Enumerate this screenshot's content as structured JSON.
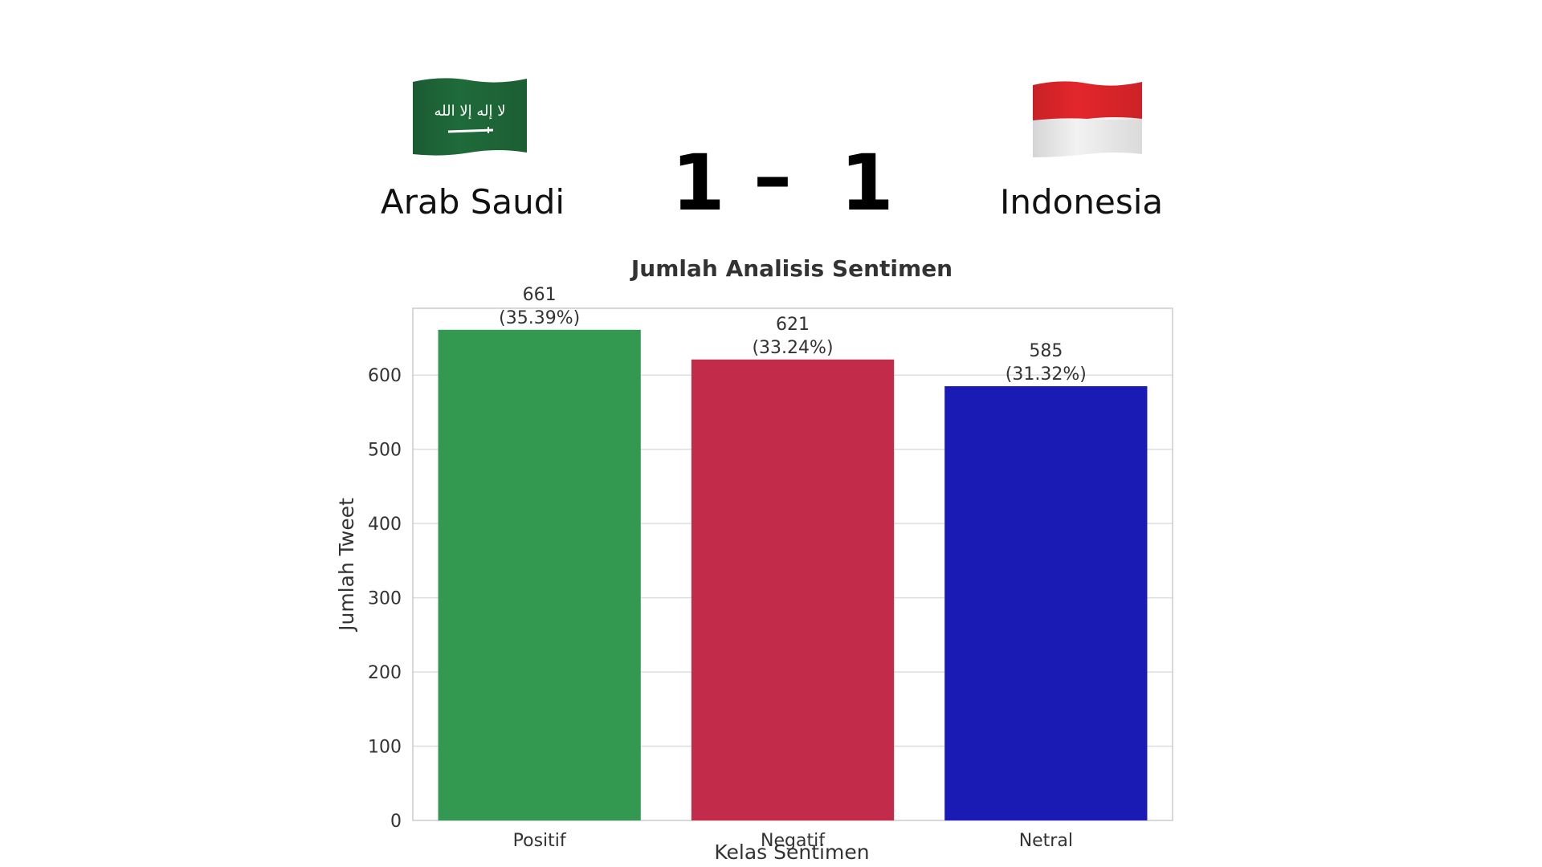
{
  "match": {
    "home_team": "Arab Saudi",
    "away_team": "Indonesia",
    "home_score": "1",
    "separator": "–",
    "away_score": "1",
    "home_flag_icon": "saudi-arabia-flag-icon",
    "away_flag_icon": "indonesia-flag-icon",
    "home_flag_colors": {
      "green": "#1f6b3a",
      "white": "#ffffff"
    },
    "away_flag_colors": {
      "red": "#e3262b",
      "white": "#f2f2f2"
    }
  },
  "chart_data": {
    "type": "bar",
    "title": "Jumlah Analisis Sentimen",
    "xlabel": "Kelas Sentimen",
    "ylabel": "Jumlah Tweet",
    "categories": [
      "Positif",
      "Negatif",
      "Netral"
    ],
    "values": [
      661,
      621,
      585
    ],
    "percent_labels": [
      "(35.39%)",
      "(33.24%)",
      "(31.32%)"
    ],
    "bar_colors": [
      "#339950",
      "#c22b49",
      "#1a1ab5"
    ],
    "ylim": [
      0,
      690
    ],
    "yticks": [
      0,
      100,
      200,
      300,
      400,
      500,
      600
    ],
    "grid": true,
    "legend": "none"
  }
}
